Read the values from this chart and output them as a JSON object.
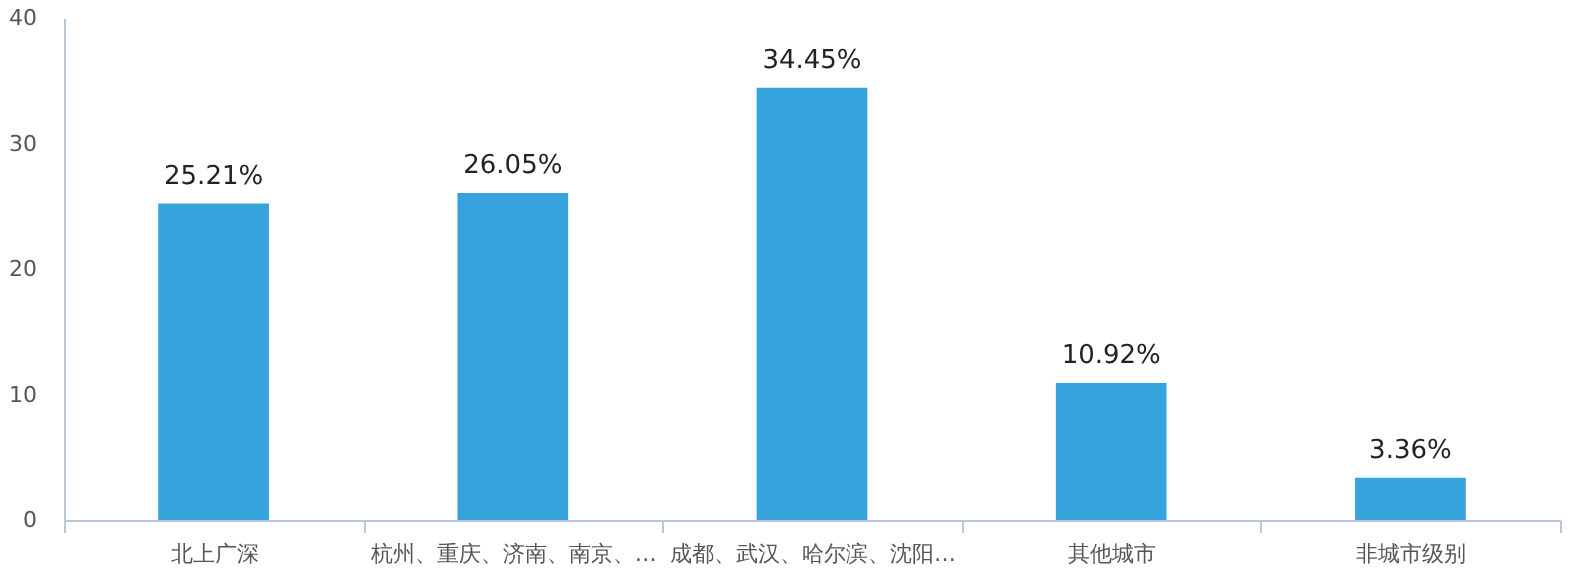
{
  "chart_data": {
    "type": "bar",
    "categories": [
      "北上广深",
      "杭州、重庆、济南、南京、…",
      "成都、武汉、哈尔滨、沈阳…",
      "其他城市",
      "非城市级别"
    ],
    "values": [
      25.21,
      26.05,
      34.45,
      10.92,
      3.36
    ],
    "value_labels": [
      "25.21%",
      "26.05%",
      "34.45%",
      "10.92%",
      "3.36%"
    ],
    "color": "#36a3dc",
    "ylim": [
      0,
      40
    ],
    "yticks": [
      0,
      10,
      20,
      30,
      40
    ],
    "grid": false
  }
}
